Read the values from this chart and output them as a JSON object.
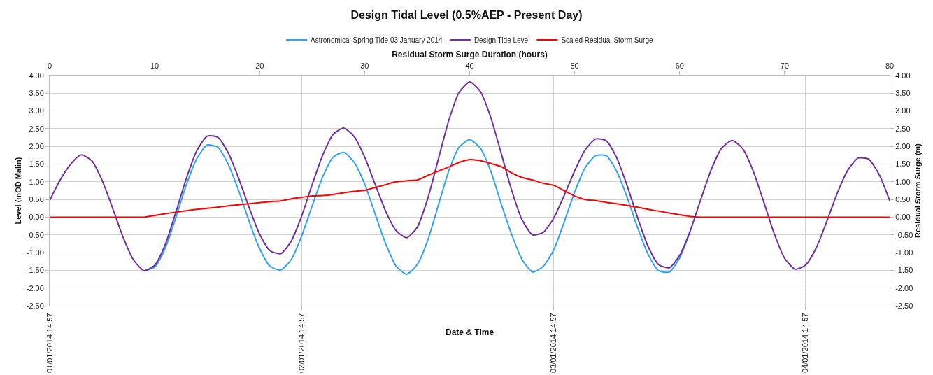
{
  "chart_data": {
    "type": "line",
    "title": "Design Tidal Level (0.5%AEP - Present Day)",
    "xlabel": "Date & Time",
    "ylabel": "Level (mOD Malin)",
    "y2label": "Residual Storm Surge (m)",
    "x2label": "Residual Storm Surge Duration (hours)",
    "legend": "top",
    "grid": true,
    "marker": "none",
    "line_style": "solid",
    "x": [
      "2014-01-01T14:57",
      "2014-01-01T15:57",
      "2014-01-01T16:57",
      "2014-01-01T17:57",
      "2014-01-01T18:57",
      "2014-01-01T19:57",
      "2014-01-01T20:57",
      "2014-01-01T21:57",
      "2014-01-01T22:57",
      "2014-01-01T23:57",
      "2014-01-02T00:57",
      "2014-01-02T01:57",
      "2014-01-02T02:57",
      "2014-01-02T03:57",
      "2014-01-02T04:57",
      "2014-01-02T05:57",
      "2014-01-02T06:57",
      "2014-01-02T07:57",
      "2014-01-02T08:57",
      "2014-01-02T09:57",
      "2014-01-02T10:57",
      "2014-01-02T11:57",
      "2014-01-02T12:57",
      "2014-01-02T13:57",
      "2014-01-02T14:57",
      "2014-01-02T15:57",
      "2014-01-02T16:57",
      "2014-01-02T17:57",
      "2014-01-02T18:57",
      "2014-01-02T19:57",
      "2014-01-02T20:57",
      "2014-01-02T21:57",
      "2014-01-02T22:57",
      "2014-01-02T23:57",
      "2014-01-03T00:57",
      "2014-01-03T01:57",
      "2014-01-03T02:57",
      "2014-01-03T03:57",
      "2014-01-03T04:57",
      "2014-01-03T05:57",
      "2014-01-03T06:57",
      "2014-01-03T07:57",
      "2014-01-03T08:57",
      "2014-01-03T09:57",
      "2014-01-03T10:57",
      "2014-01-03T11:57",
      "2014-01-03T12:57",
      "2014-01-03T13:57",
      "2014-01-03T14:57",
      "2014-01-03T15:57",
      "2014-01-03T16:57",
      "2014-01-03T17:57",
      "2014-01-03T18:57",
      "2014-01-03T19:57",
      "2014-01-03T20:57",
      "2014-01-03T21:57",
      "2014-01-03T22:57",
      "2014-01-03T23:57",
      "2014-01-04T00:57",
      "2014-01-04T01:57",
      "2014-01-04T02:57",
      "2014-01-04T03:57",
      "2014-01-04T04:57",
      "2014-01-04T05:57",
      "2014-01-04T06:57",
      "2014-01-04T07:57",
      "2014-01-04T08:57",
      "2014-01-04T09:57",
      "2014-01-04T10:57",
      "2014-01-04T11:57",
      "2014-01-04T12:57",
      "2014-01-04T13:57",
      "2014-01-04T14:57",
      "2014-01-04T15:57",
      "2014-01-04T16:57",
      "2014-01-04T17:57",
      "2014-01-04T18:57",
      "2014-01-04T19:57",
      "2014-01-04T20:57",
      "2014-01-04T21:57",
      "2014-01-04T22:57"
    ],
    "series": [
      {
        "name": "Astronomical Spring Tide 03 January 2014",
        "color": "#33a1f5",
        "values": [
          null,
          null,
          null,
          null,
          null,
          null,
          null,
          null,
          null,
          -1.51,
          -1.41,
          -0.88,
          -0.03,
          0.9,
          1.65,
          2.04,
          1.98,
          1.5,
          0.75,
          -0.12,
          -0.89,
          -1.39,
          -1.49,
          -1.2,
          -0.53,
          0.32,
          1.14,
          1.7,
          1.83,
          1.55,
          0.94,
          0.09,
          -0.75,
          -1.38,
          -1.61,
          -1.34,
          -0.66,
          0.32,
          1.3,
          1.98,
          2.19,
          1.96,
          1.31,
          0.38,
          -0.49,
          -1.2,
          -1.55,
          -1.39,
          -0.93,
          -0.14,
          0.71,
          1.4,
          1.74,
          1.74,
          1.3,
          0.56,
          -0.3,
          -1.05,
          -1.51,
          -1.55,
          -1.15,
          -0.41,
          null,
          null,
          null,
          null,
          null,
          null,
          null,
          null,
          null,
          null,
          null,
          null,
          null,
          null,
          null,
          null,
          null,
          null,
          null
        ]
      },
      {
        "name": "Design Tide Level",
        "color": "#7030a0",
        "values": [
          0.47,
          1.05,
          1.5,
          1.76,
          1.6,
          1.04,
          0.25,
          -0.57,
          -1.21,
          -1.51,
          -1.36,
          -0.78,
          0.12,
          1.08,
          1.87,
          2.29,
          2.26,
          1.82,
          1.1,
          0.27,
          -0.48,
          -0.95,
          -1.03,
          -0.68,
          0.03,
          0.92,
          1.75,
          2.34,
          2.52,
          2.28,
          1.7,
          0.93,
          0.17,
          -0.38,
          -0.58,
          -0.29,
          0.52,
          1.62,
          2.72,
          3.53,
          3.82,
          3.56,
          2.83,
          1.81,
          0.76,
          -0.08,
          -0.5,
          -0.43,
          -0.03,
          0.61,
          1.31,
          1.9,
          2.21,
          2.16,
          1.68,
          0.89,
          -0.02,
          -0.83,
          -1.34,
          -1.43,
          -1.08,
          -0.39,
          0.49,
          1.34,
          1.95,
          2.17,
          1.94,
          1.31,
          0.44,
          -0.46,
          -1.16,
          -1.47,
          -1.35,
          -0.87,
          -0.13,
          0.67,
          1.32,
          1.67,
          1.64,
          1.21,
          0.47
        ]
      },
      {
        "name": "Scaled Residual Storm Surge",
        "color": "#ff0000",
        "axis": "y2",
        "values": [
          0,
          0,
          0,
          0,
          0,
          0,
          0,
          0,
          0,
          0,
          0.05,
          0.1,
          0.14,
          0.18,
          0.22,
          0.25,
          0.28,
          0.32,
          0.35,
          0.38,
          0.41,
          0.44,
          0.46,
          0.52,
          0.56,
          0.6,
          0.61,
          0.64,
          0.69,
          0.73,
          0.76,
          0.84,
          0.92,
          1.0,
          1.03,
          1.05,
          1.18,
          1.3,
          1.42,
          1.55,
          1.63,
          1.6,
          1.52,
          1.43,
          1.25,
          1.12,
          1.05,
          0.96,
          0.9,
          0.75,
          0.6,
          0.5,
          0.47,
          0.42,
          0.38,
          0.33,
          0.28,
          0.22,
          0.17,
          0.12,
          0.07,
          0.02,
          0,
          0,
          0,
          0,
          0,
          0,
          0,
          0,
          0,
          0,
          0,
          0,
          0,
          0,
          0,
          0,
          0,
          0,
          0
        ]
      }
    ],
    "xlim": [
      "2014-01-01T14:57",
      "2014-01-04T22:57"
    ],
    "xticks": [
      {
        "value": "2014-01-01T14:57",
        "label": "01/01/2014 14:57"
      },
      {
        "value": "2014-01-02T14:57",
        "label": "02/01/2014 14:57"
      },
      {
        "value": "2014-01-03T14:57",
        "label": "03/01/2014 14:57"
      },
      {
        "value": "2014-01-04T14:57",
        "label": "04/01/2014 14:57"
      }
    ],
    "x2lim": [
      0,
      80
    ],
    "x2ticks": [
      0,
      10,
      20,
      30,
      40,
      50,
      60,
      70,
      80
    ],
    "ylim": [
      -2.5,
      4
    ],
    "yticks": [
      {
        "value": -2.5,
        "label": "-2.50"
      },
      {
        "value": -2,
        "label": "-2.00"
      },
      {
        "value": -1.5,
        "label": "-1.50"
      },
      {
        "value": -1,
        "label": "-1.00"
      },
      {
        "value": -0.5,
        "label": "-0.50"
      },
      {
        "value": 0,
        "label": "0.00"
      },
      {
        "value": 0.5,
        "label": "0.50"
      },
      {
        "value": 1,
        "label": "1.00"
      },
      {
        "value": 1.5,
        "label": "1.50"
      },
      {
        "value": 2,
        "label": "2.00"
      },
      {
        "value": 2.5,
        "label": "2.50"
      },
      {
        "value": 3,
        "label": "3.00"
      },
      {
        "value": 3.5,
        "label": "3.50"
      },
      {
        "value": 4,
        "label": "4.00"
      }
    ],
    "y2lim": [
      -2.5,
      4
    ],
    "y2ticks": [
      {
        "value": -2.5,
        "label": "-2.50"
      },
      {
        "value": -2,
        "label": "-2.00"
      },
      {
        "value": -1.5,
        "label": "-1.50"
      },
      {
        "value": -1,
        "label": "-1.00"
      },
      {
        "value": -0.5,
        "label": "-0.50"
      },
      {
        "value": 0,
        "label": "0.00"
      },
      {
        "value": 0.5,
        "label": "0.50"
      },
      {
        "value": 1,
        "label": "1.00"
      },
      {
        "value": 1.5,
        "label": "1.50"
      },
      {
        "value": 2,
        "label": "2.00"
      },
      {
        "value": 2.5,
        "label": "2.50"
      },
      {
        "value": 3,
        "label": "3.00"
      },
      {
        "value": 3.5,
        "label": "3.50"
      },
      {
        "value": 4,
        "label": "4.00"
      }
    ]
  }
}
